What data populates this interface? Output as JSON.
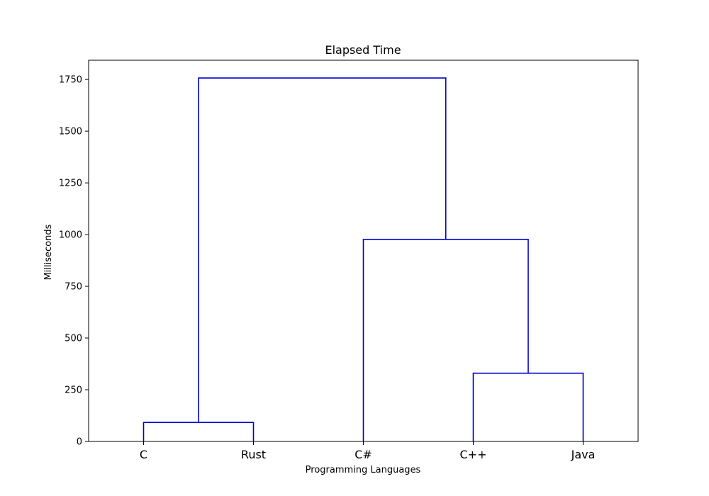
{
  "chart_data": {
    "type": "dendrogram",
    "title": "Elapsed Time",
    "xlabel": "Programming Languages",
    "ylabel": "Milliseconds",
    "leaves": [
      "C",
      "Rust",
      "C#",
      "C++",
      "Java"
    ],
    "yticks": [
      0,
      250,
      500,
      750,
      1000,
      1250,
      1500,
      1750
    ],
    "ylim": [
      0,
      1843
    ],
    "line_color": "#0000cc",
    "links": [
      {
        "left": "C",
        "right": "Rust",
        "height": 92
      },
      {
        "left": "C++",
        "right": "Java",
        "height": 330
      },
      {
        "left": "C#",
        "right": "C++ + Java",
        "height": 977
      },
      {
        "left": "C + Rust",
        "right": "C# + C++ + Java",
        "height": 1757
      }
    ]
  }
}
